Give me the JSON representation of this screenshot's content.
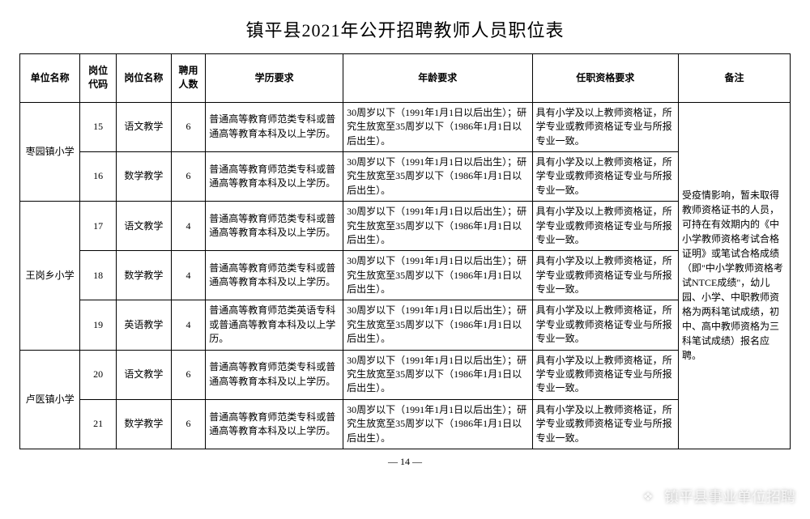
{
  "title": "镇平县2021年公开招聘教师人员职位表",
  "columns": {
    "unit": "单位名称",
    "code": "岗位代码",
    "position": "岗位名称",
    "count": "聘用人数",
    "education": "学历要求",
    "age": "年龄要求",
    "qualification": "任职资格要求",
    "remark": "备注"
  },
  "units": [
    {
      "name": "枣园镇小学",
      "row_indices": [
        0,
        1
      ]
    },
    {
      "name": "王岗乡小学",
      "row_indices": [
        2,
        3,
        4
      ]
    },
    {
      "name": "卢医镇小学",
      "row_indices": [
        5,
        6
      ]
    }
  ],
  "rows": [
    {
      "code": "15",
      "position": "语文教学",
      "count": "6",
      "education": "普通高等教育师范类专科或普通高等教育本科及以上学历。",
      "age": "30周岁以下（1991年1月1日以后出生）；研究生放宽至35周岁以下（1986年1月1日以后出生）。",
      "qualification": "具有小学及以上教师资格证，所学专业或教师资格证专业与所报专业一致。"
    },
    {
      "code": "16",
      "position": "数学教学",
      "count": "6",
      "education": "普通高等教育师范类专科或普通高等教育本科及以上学历。",
      "age": "30周岁以下（1991年1月1日以后出生）；研究生放宽至35周岁以下（1986年1月1日以后出生）。",
      "qualification": "具有小学及以上教师资格证，所学专业或教师资格证专业与所报专业一致。"
    },
    {
      "code": "17",
      "position": "语文教学",
      "count": "4",
      "education": "普通高等教育师范类专科或普通高等教育本科及以上学历。",
      "age": "30周岁以下（1991年1月1日以后出生）；研究生放宽至35周岁以下（1986年1月1日以后出生）。",
      "qualification": "具有小学及以上教师资格证，所学专业或教师资格证专业与所报专业一致。"
    },
    {
      "code": "18",
      "position": "数学教学",
      "count": "4",
      "education": "普通高等教育师范类专科或普通高等教育本科及以上学历。",
      "age": "30周岁以下（1991年1月1日以后出生）；研究生放宽至35周岁以下（1986年1月1日以后出生）。",
      "qualification": "具有小学及以上教师资格证，所学专业或教师资格证专业与所报专业一致。"
    },
    {
      "code": "19",
      "position": "英语教学",
      "count": "4",
      "education": "普通高等教育师范类英语专科或普通高等教育本科及以上学历。",
      "age": "30周岁以下（1991年1月1日以后出生）；研究生放宽至35周岁以下（1986年1月1日以后出生）。",
      "qualification": "具有小学及以上教师资格证，所学专业或教师资格证专业与所报专业一致。"
    },
    {
      "code": "20",
      "position": "语文教学",
      "count": "6",
      "education": "普通高等教育师范类专科或普通高等教育本科及以上学历。",
      "age": "30周岁以下（1991年1月1日以后出生）；研究生放宽至35周岁以下（1986年1月1日以后出生）。",
      "qualification": "具有小学及以上教师资格证，所学专业或教师资格证专业与所报专业一致。"
    },
    {
      "code": "21",
      "position": "数学教学",
      "count": "6",
      "education": "普通高等教育师范类专科或普通高等教育本科及以上学历。",
      "age": "30周岁以下（1991年1月1日以后出生）；研究生放宽至35周岁以下（1986年1月1日以后出生）。",
      "qualification": "具有小学及以上教师资格证，所学专业或教师资格证专业与所报专业一致。"
    }
  ],
  "remark_text": "受疫情影响，暂未取得教师资格证书的人员，可持在有效期内的《中小学教师资格考试合格证明》或笔试合格成绩（即\"中小学教师资格考试NTCE成绩\"，幼儿园、小学、中职教师资格为两科笔试成绩，初中、高中教师资格为三科笔试成绩）报名应聘。",
  "page_number": "— 14 —",
  "watermark": "镇平县事业单位招聘",
  "colors": {
    "border": "#000000",
    "background": "#ffffff",
    "watermark_text": "rgba(255,255,255,0.75)"
  }
}
